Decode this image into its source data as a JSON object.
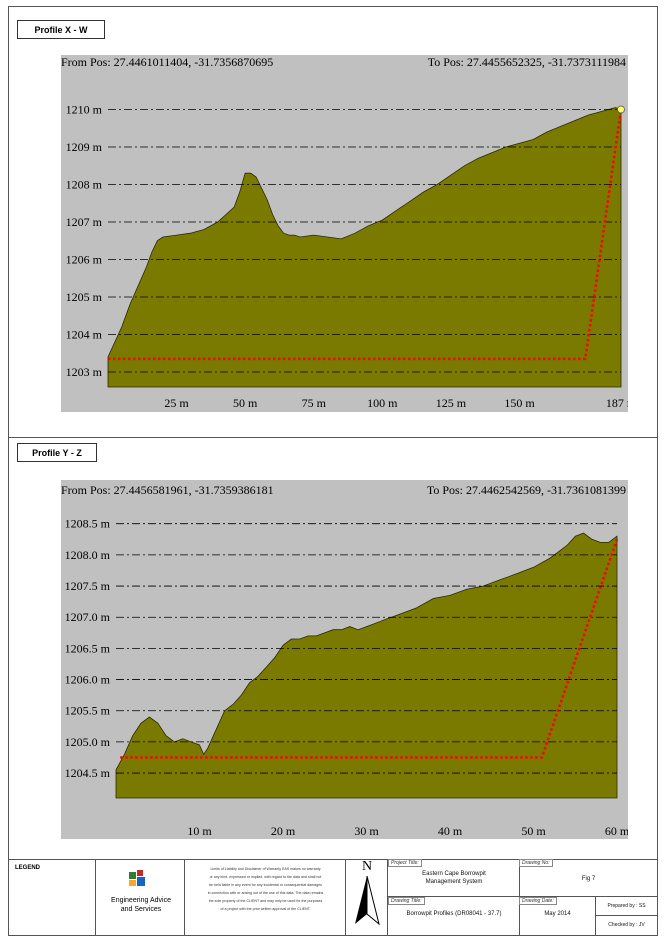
{
  "profiles": [
    {
      "title": "Profile X - W",
      "from_pos": "From Pos: 27.4461011404, -31.7356870695",
      "to_pos": "To Pos: 27.4455652325, -31.7373111984"
    },
    {
      "title": "Profile Y - Z",
      "from_pos": "From Pos: 27.4456581961, -31.7359386181",
      "to_pos": "To Pos: 27.4462542569, -31.7361081399"
    }
  ],
  "chart_data": [
    {
      "type": "area",
      "title": "Profile X - W",
      "xlabel": "",
      "ylabel": "",
      "xlim": [
        0,
        187
      ],
      "ylim": [
        1202.6,
        1210.6
      ],
      "x_ticks": [
        25,
        50,
        75,
        100,
        125,
        150,
        187
      ],
      "x_tick_labels": [
        "25 m",
        "50 m",
        "75 m",
        "100 m",
        "125 m",
        "150 m",
        "187 m"
      ],
      "y_ticks": [
        1203,
        1204,
        1205,
        1206,
        1207,
        1208,
        1209,
        1210
      ],
      "y_tick_labels": [
        "1203 m",
        "1204 m",
        "1205 m",
        "1206 m",
        "1207 m",
        "1208 m",
        "1209 m",
        "1210 m"
      ],
      "grid": true,
      "series": [
        {
          "x": [
            0,
            5,
            8,
            11,
            14,
            16,
            18,
            20,
            25,
            30,
            35,
            40,
            43,
            46,
            48,
            50,
            52,
            54,
            56,
            58,
            60,
            62,
            64,
            66,
            68,
            70,
            75,
            80,
            85,
            90,
            95,
            100,
            105,
            110,
            115,
            120,
            125,
            130,
            135,
            140,
            145,
            150,
            155,
            160,
            165,
            170,
            175,
            180,
            185,
            187
          ],
          "y": [
            1203.4,
            1204.2,
            1204.8,
            1205.3,
            1205.8,
            1206.2,
            1206.5,
            1206.6,
            1206.65,
            1206.7,
            1206.8,
            1207.0,
            1207.2,
            1207.4,
            1207.8,
            1208.3,
            1208.3,
            1208.2,
            1207.9,
            1207.6,
            1207.2,
            1206.9,
            1206.7,
            1206.65,
            1206.65,
            1206.6,
            1206.65,
            1206.6,
            1206.55,
            1206.7,
            1206.9,
            1207.05,
            1207.3,
            1207.55,
            1207.8,
            1208.0,
            1208.25,
            1208.5,
            1208.7,
            1208.85,
            1209.0,
            1209.1,
            1209.2,
            1209.4,
            1209.55,
            1209.7,
            1209.85,
            1209.95,
            1210.05,
            1210.0
          ]
        }
      ],
      "red_path": {
        "x": [
          0,
          174,
          187
        ],
        "y": [
          1203.35,
          1203.35,
          1210.0
        ]
      },
      "end_marker": {
        "x": 187,
        "y": 1210.0
      },
      "colors": {
        "fill": "#7a7a00",
        "background": "#c0c0c0",
        "path": "#ff0000",
        "marker": "#ffff66"
      }
    },
    {
      "type": "area",
      "title": "Profile Y - Z",
      "xlabel": "",
      "ylabel": "",
      "xlim": [
        0,
        60
      ],
      "ylim": [
        1204.1,
        1208.8
      ],
      "x_ticks": [
        10,
        20,
        30,
        40,
        50,
        60
      ],
      "x_tick_labels": [
        "10 m",
        "20 m",
        "30 m",
        "40 m",
        "50 m",
        "60 m"
      ],
      "y_ticks": [
        1204.5,
        1205.0,
        1205.5,
        1206.0,
        1206.5,
        1207.0,
        1207.5,
        1208.0,
        1208.5
      ],
      "y_tick_labels": [
        "1204.5 m",
        "1205.0 m",
        "1205.5 m",
        "1206.0 m",
        "1206.5 m",
        "1207.0 m",
        "1207.5 m",
        "1208.0 m",
        "1208.5 m"
      ],
      "grid": true,
      "series": [
        {
          "x": [
            0,
            1,
            2,
            3,
            4,
            5,
            6,
            7,
            8,
            9,
            10,
            10.5,
            11,
            12,
            13,
            14,
            15,
            16,
            17,
            18,
            19,
            20,
            21,
            22,
            23,
            24,
            25,
            26,
            27,
            28,
            29,
            30,
            32,
            34,
            36,
            38,
            40,
            42,
            44,
            46,
            48,
            50,
            52,
            54,
            55,
            56,
            57,
            58,
            59,
            60
          ],
          "y": [
            1204.55,
            1204.8,
            1205.1,
            1205.3,
            1205.4,
            1205.3,
            1205.1,
            1205.0,
            1205.05,
            1205.0,
            1204.95,
            1204.8,
            1204.9,
            1205.2,
            1205.5,
            1205.6,
            1205.75,
            1205.95,
            1206.05,
            1206.2,
            1206.35,
            1206.55,
            1206.65,
            1206.65,
            1206.7,
            1206.7,
            1206.75,
            1206.8,
            1206.8,
            1206.85,
            1206.8,
            1206.85,
            1206.95,
            1207.05,
            1207.15,
            1207.3,
            1207.35,
            1207.45,
            1207.5,
            1207.6,
            1207.7,
            1207.8,
            1207.95,
            1208.15,
            1208.3,
            1208.35,
            1208.25,
            1208.2,
            1208.2,
            1208.3
          ]
        }
      ],
      "red_path": {
        "x": [
          0.5,
          51,
          60
        ],
        "y": [
          1204.75,
          1204.75,
          1208.25
        ]
      },
      "colors": {
        "fill": "#7a7a00",
        "background": "#c0c0c0",
        "path": "#ff0000"
      }
    }
  ],
  "legend": {
    "label": "LEGEND",
    "company_line1": "Engineering Advice",
    "company_line2": "and Services",
    "disclaimer_lines": [
      "Limits of Liability and Disclaimer of Warranty EAS makes no warranty",
      "or any kind, expressed or implied, with regard to the data and shall not",
      "be held liable in any event for any incidental or consequential damages",
      "in connection with or arising out of the use of this data. The data remains",
      "the sole property of the CLIENT and may only be used for the purposes",
      "of a project with the prior written approval of the CLIENT."
    ],
    "north_label": "N",
    "project_title_label": "Project Title:",
    "project_title_line1": "Eastern Cape Borrowpit",
    "project_title_line2": "Management System",
    "drawing_title_label": "Drawing Title:",
    "drawing_title": "Borrowpit Profiles (DR08041 - 37.7)",
    "drawing_no_label": "Drawing No:",
    "drawing_no": "Fig 7",
    "drawing_date_label": "Drawing Date:",
    "drawing_date": "May 2014",
    "prepared_by": "Prepared by : SS",
    "checked_by": "Checked by : JV"
  }
}
